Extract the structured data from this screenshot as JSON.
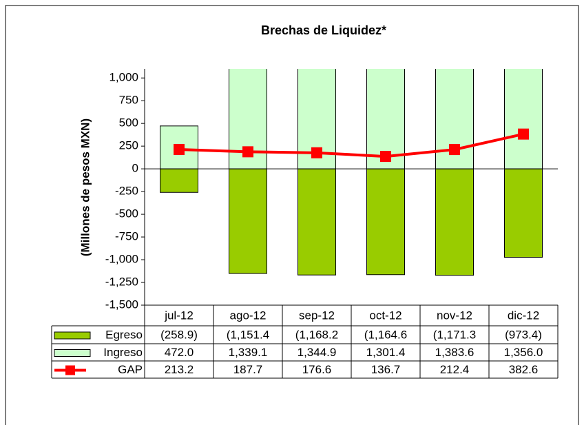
{
  "chart_data": {
    "type": "bar",
    "title": "Brechas de Liquidez*",
    "y_label": "(Millones de pesos MXN)",
    "categories": [
      "jul-12",
      "ago-12",
      "sep-12",
      "oct-12",
      "nov-12",
      "dic-12"
    ],
    "series": [
      {
        "name": "Egreso",
        "type": "bar",
        "color": "#99cc00",
        "values": [
          -258.9,
          -1151.4,
          -1168.2,
          -1164.6,
          -1171.3,
          -973.4
        ],
        "value_labels": [
          "(258.9)",
          "(1,151.4",
          "(1,168.2",
          "(1,164.6",
          "(1,171.3",
          "(973.4)"
        ]
      },
      {
        "name": "Ingreso",
        "type": "bar",
        "color": "#ccffcc",
        "values": [
          472.0,
          1339.1,
          1344.9,
          1301.4,
          1383.6,
          1356.0
        ],
        "value_labels": [
          "472.0",
          "1,339.1",
          "1,344.9",
          "1,301.4",
          "1,383.6",
          "1,356.0"
        ]
      },
      {
        "name": "GAP",
        "type": "line",
        "color": "#ff0000",
        "values": [
          213.2,
          187.7,
          176.6,
          136.7,
          212.4,
          382.6
        ]
      }
    ],
    "ylim": [
      -1500,
      1100
    ],
    "yticks": [
      {
        "value": -1500,
        "label": "-1,500"
      },
      {
        "value": -1250,
        "label": "-1,250"
      },
      {
        "value": -1000,
        "label": "-1,000"
      },
      -750,
      -500,
      -250,
      0,
      250,
      500,
      750,
      {
        "value": 1000,
        "label": "1,000"
      }
    ]
  }
}
